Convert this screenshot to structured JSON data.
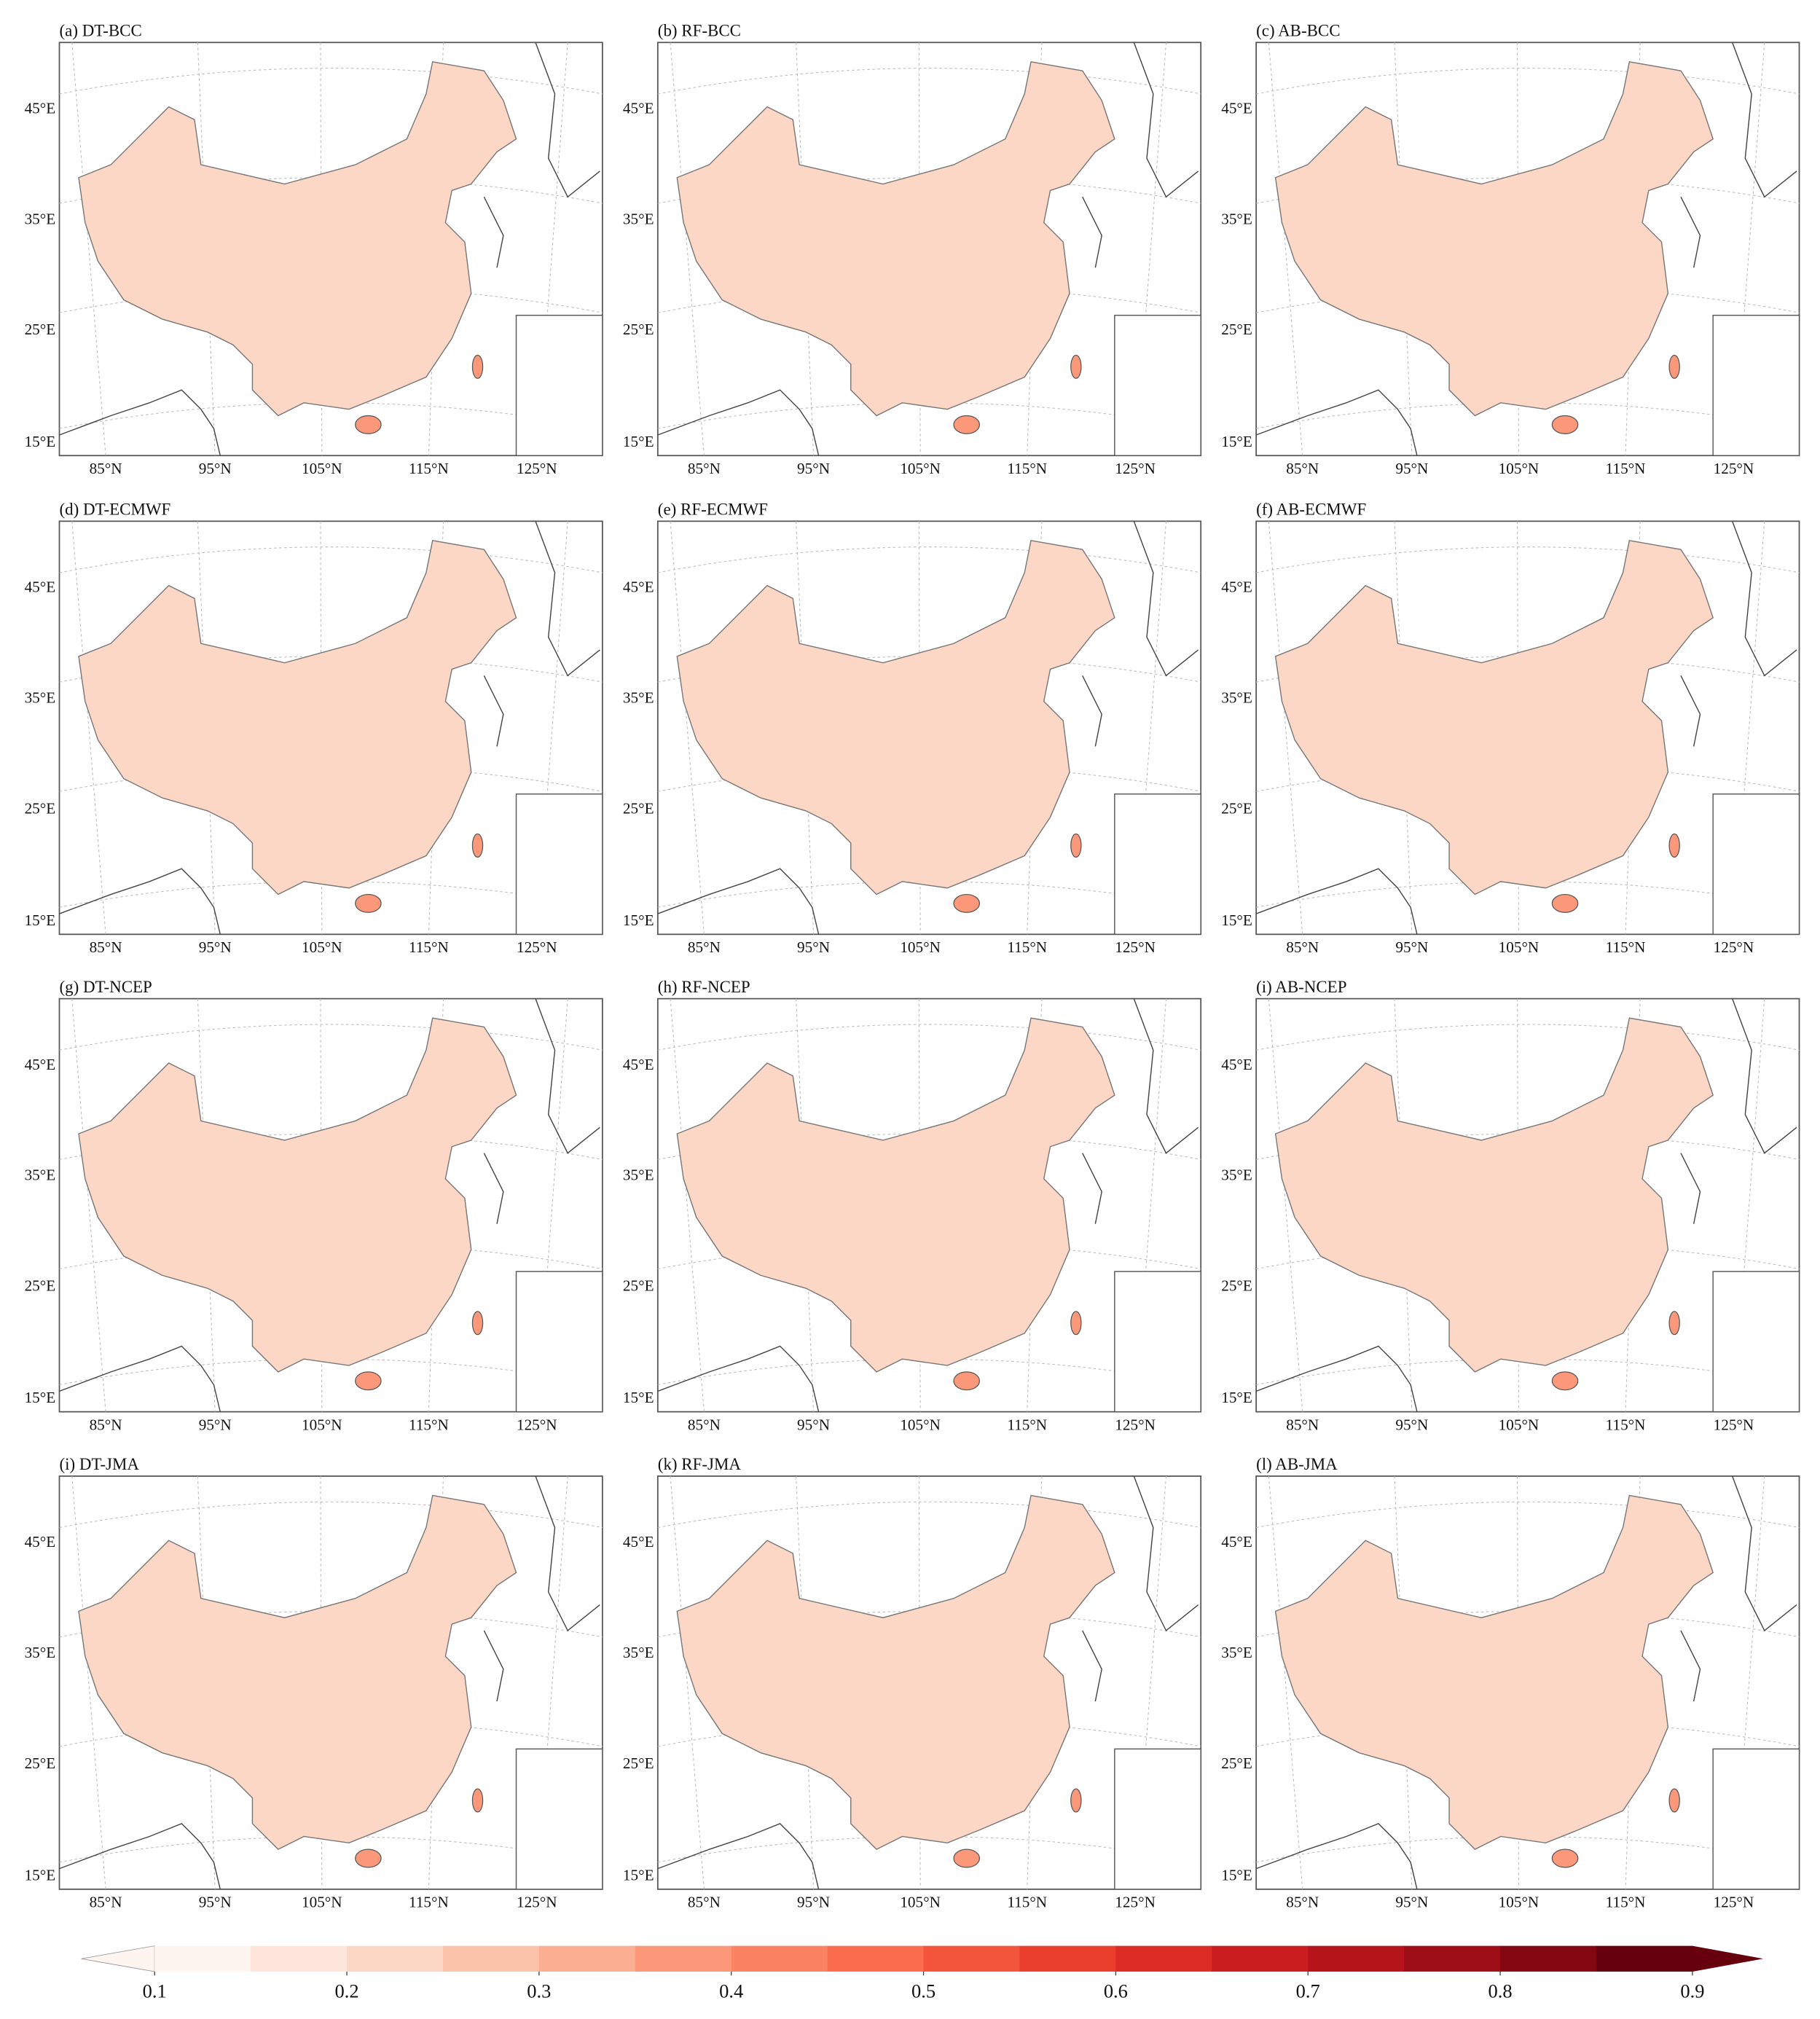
{
  "panels": [
    {
      "title": "(a) DT-BCC"
    },
    {
      "title": "(b) RF-BCC"
    },
    {
      "title": "(c) AB-BCC"
    },
    {
      "title": "(d) DT-ECMWF"
    },
    {
      "title": "(e) RF-ECMWF"
    },
    {
      "title": "(f) AB-ECMWF"
    },
    {
      "title": "(g) DT-NCEP"
    },
    {
      "title": "(h) RF-NCEP"
    },
    {
      "title": "(i) AB-NCEP"
    },
    {
      "title": "(i) DT-JMA"
    },
    {
      "title": "(k) RF-JMA"
    },
    {
      "title": "(l) AB-JMA"
    }
  ],
  "latitude_labels": [
    "45°E",
    "35°E",
    "25°E",
    "15°E"
  ],
  "longitude_labels": [
    "85°N",
    "95°N",
    "105°N",
    "115°N",
    "125°N"
  ],
  "colorbar": {
    "ticks": [
      0.1,
      0.2,
      0.3,
      0.4,
      0.5,
      0.6,
      0.7,
      0.8,
      0.9
    ],
    "colors": [
      "#fff5f0",
      "#fee6dc",
      "#fdd7c6",
      "#fcc3ab",
      "#fcae93",
      "#fc987a",
      "#fb8263",
      "#fa6c4d",
      "#f3553c",
      "#eb3f2e",
      "#dc2c25",
      "#c91d1f",
      "#b4141a",
      "#9d0e16",
      "#830710",
      "#67000d"
    ]
  }
}
